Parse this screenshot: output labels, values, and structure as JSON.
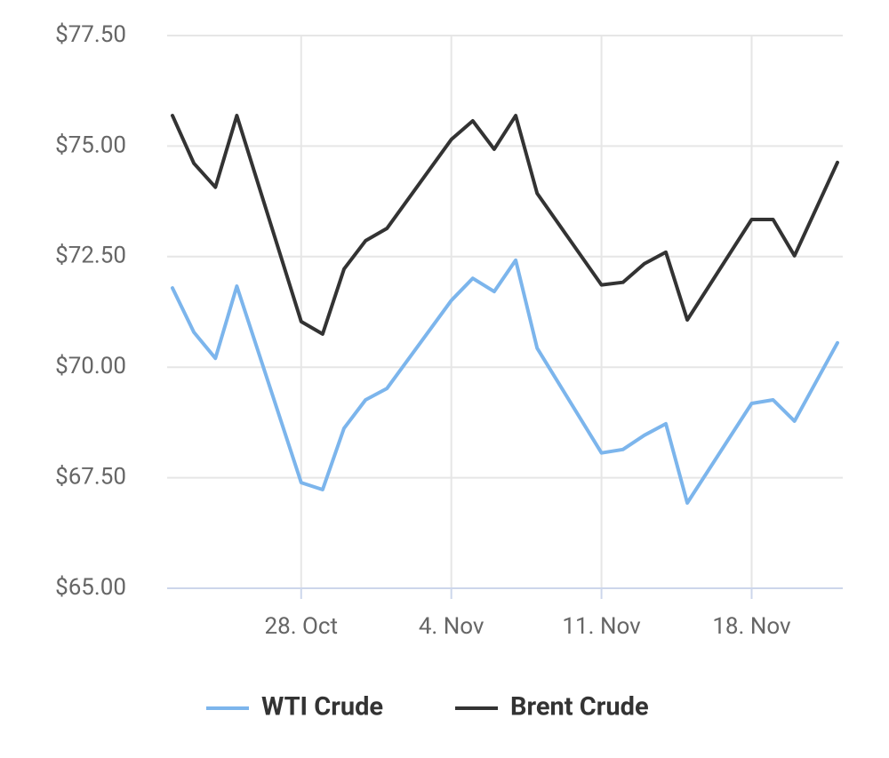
{
  "chart_data": {
    "type": "line",
    "x": [
      "22. Oct",
      "23. Oct",
      "24. Oct",
      "25. Oct",
      "28. Oct",
      "29. Oct",
      "30. Oct",
      "31. Oct",
      "1. Nov",
      "4. Nov",
      "5. Nov",
      "6. Nov",
      "7. Nov",
      "8. Nov",
      "11. Nov",
      "12. Nov",
      "13. Nov",
      "14. Nov",
      "15. Nov",
      "18. Nov",
      "19. Nov",
      "20. Nov",
      "22. Nov"
    ],
    "series": [
      {
        "name": "WTI Crude",
        "color": "#7cb5ec",
        "values": [
          71.79,
          70.79,
          70.2,
          71.83,
          67.39,
          67.23,
          68.62,
          69.26,
          69.52,
          71.51,
          72.01,
          71.71,
          72.42,
          70.43,
          68.06,
          68.14,
          68.46,
          68.72,
          66.93,
          69.18,
          69.26,
          68.78,
          70.55
        ]
      },
      {
        "name": "Brent Crude",
        "color": "#333333",
        "values": [
          75.69,
          74.61,
          74.07,
          75.69,
          71.03,
          70.75,
          72.22,
          72.86,
          73.14,
          75.15,
          75.57,
          74.93,
          75.69,
          73.93,
          71.86,
          71.92,
          72.34,
          72.6,
          71.07,
          73.34,
          73.34,
          72.52,
          74.63
        ]
      }
    ],
    "xlim": [
      "22. Oct",
      "22. Nov"
    ],
    "xticks": [
      "28. Oct",
      "4. Nov",
      "11. Nov",
      "18. Nov"
    ],
    "ylim": [
      65,
      77.5
    ],
    "yticks": [
      {
        "value": 65,
        "label": "$65.00"
      },
      {
        "value": 67.5,
        "label": "$67.50"
      },
      {
        "value": 70,
        "label": "$70.00"
      },
      {
        "value": 72.5,
        "label": "$72.50"
      },
      {
        "value": 75,
        "label": "$75.00"
      },
      {
        "value": 77.5,
        "label": "$77.50"
      }
    ],
    "grid": true,
    "legend": "bottom"
  }
}
